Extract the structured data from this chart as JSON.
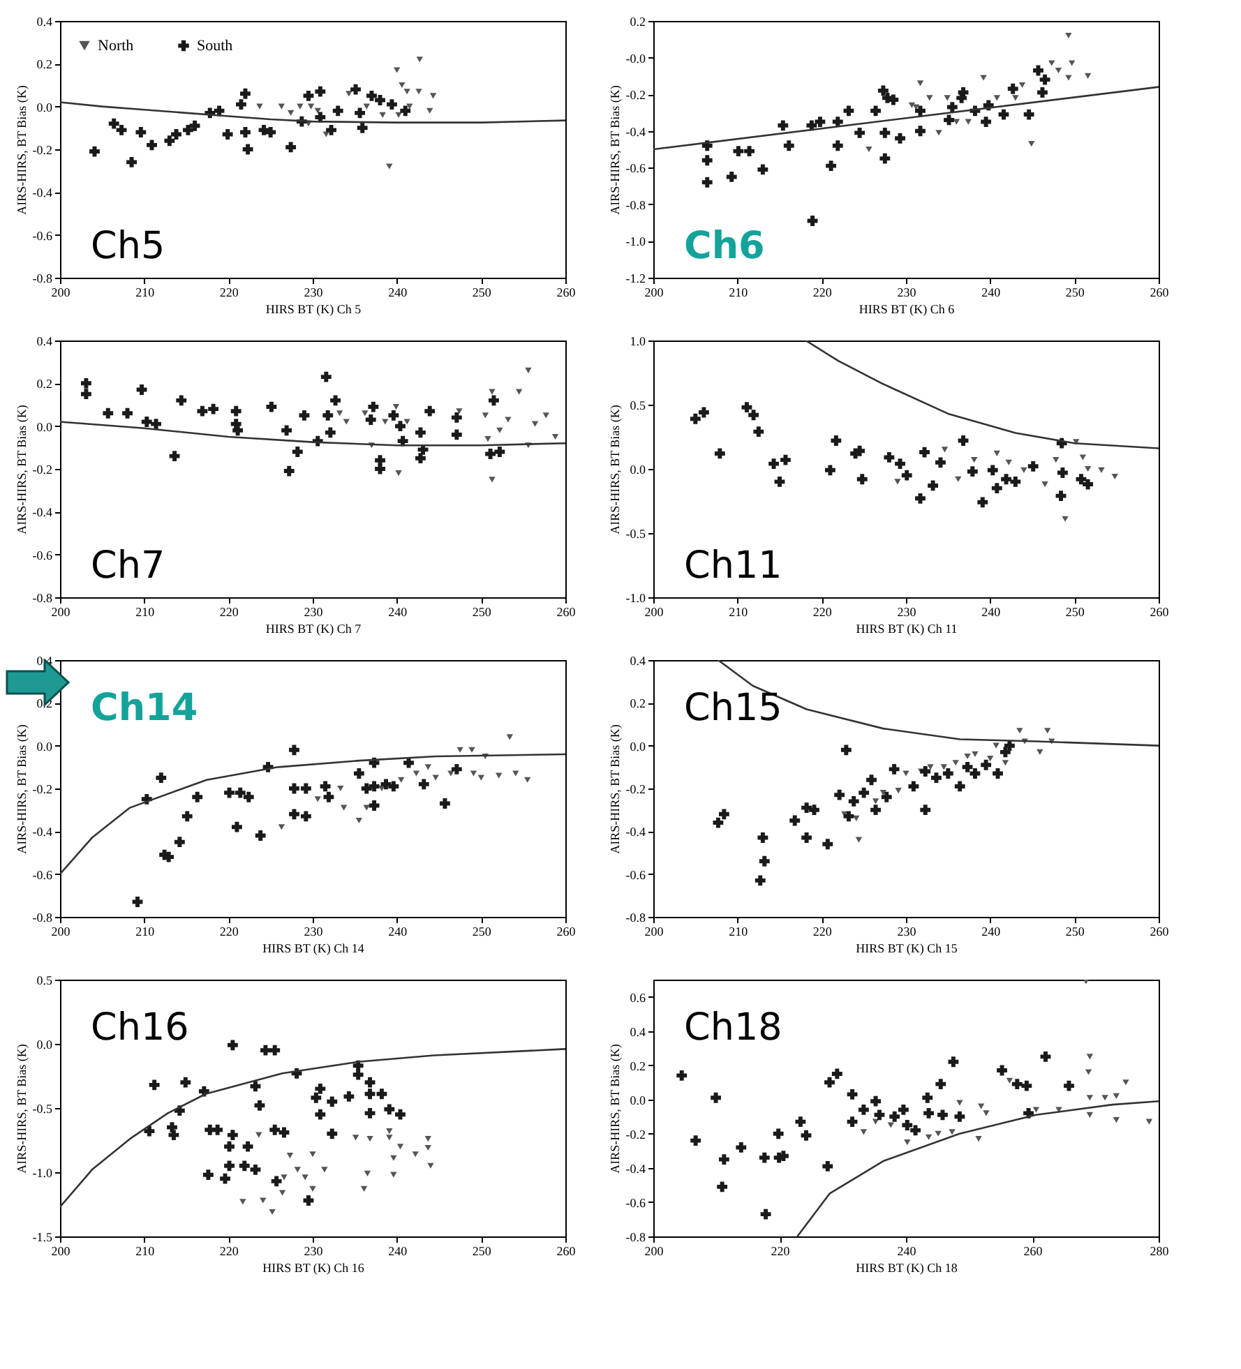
{
  "chart_data": [
    {
      "type": "scatter",
      "xlabel": "HIRS BT (K) Ch 5",
      "ylabel": "AIRS-HIRS, BT Bias (K)",
      "annotations": [
        "Ch5"
      ],
      "legend": "top left",
      "xlim": [
        200,
        260
      ],
      "xticks": [
        200,
        210,
        220,
        230,
        240,
        250,
        260
      ],
      "ylim": [
        -0.8,
        0.4
      ],
      "yticks": [
        -0.8,
        -0.6,
        -0.4,
        -0.2,
        {
          "value": 0,
          "label": "0.0"
        },
        0.2,
        0.4
      ],
      "series": [
        {
          "name": "North",
          "color": "#555555",
          "marker": "triangle",
          "x": [
            223.7,
            226.3,
            227.4,
            228.5,
            229.8,
            230.6,
            231.6,
            234.3,
            236.4,
            239.1,
            240,
            240.6,
            241.2,
            242.7,
            242.6,
            243.9,
            244.3,
            238.3,
            240.2,
            241.5,
            229.5
          ],
          "values": [
            0.0,
            0.0,
            -0.03,
            0.0,
            0.0,
            -0.02,
            -0.13,
            0.06,
            0.0,
            -0.28,
            0.17,
            0.1,
            0.07,
            0.22,
            0.07,
            -0.02,
            0.05,
            -0.04,
            -0.04,
            0.0,
            -0.08
          ]
        },
        {
          "name": "South",
          "color": "#1a1a1a",
          "marker": "cross",
          "x": [
            204.1,
            206.4,
            207.3,
            208.5,
            209.6,
            210.9,
            213,
            213.8,
            215.2,
            216,
            217.8,
            218.9,
            219.9,
            221.5,
            222,
            222,
            222.3,
            224.2,
            225,
            227.4,
            229.5,
            230.9,
            230.9,
            232.2,
            233,
            235.1,
            235.6,
            235.9,
            237,
            238,
            239.4,
            241,
            228.7
          ],
          "values": [
            -0.21,
            -0.08,
            -0.11,
            -0.26,
            -0.12,
            -0.18,
            -0.16,
            -0.13,
            -0.11,
            -0.09,
            -0.03,
            -0.02,
            -0.13,
            0.01,
            0.06,
            -0.12,
            -0.2,
            -0.11,
            -0.12,
            -0.19,
            0.05,
            0.07,
            -0.05,
            -0.11,
            -0.02,
            0.08,
            -0.03,
            -0.1,
            0.05,
            0.03,
            0.01,
            -0.02,
            -0.07
          ]
        },
        {
          "type": "line",
          "color": "#333333",
          "marker": "none",
          "x": [
            200,
            205,
            210,
            215,
            220,
            225,
            230,
            240,
            250,
            260
          ],
          "values": [
            0.02,
            0.0,
            -0.015,
            -0.03,
            -0.045,
            -0.06,
            -0.07,
            -0.075,
            -0.075,
            -0.065
          ]
        }
      ]
    },
    {
      "type": "scatter",
      "xlabel": "HIRS BT (K) Ch 6",
      "ylabel": "AIRS-HIRS, BT Bias (K)",
      "annotations": [
        "Ch6"
      ],
      "xlim": [
        200,
        260
      ],
      "xticks": [
        200,
        210,
        220,
        230,
        240,
        250,
        260
      ],
      "ylim": [
        -1.2,
        0.2
      ],
      "yticks": [
        -1.2,
        {
          "value": -1,
          "label": "-1.0"
        },
        -0.8,
        -0.6,
        -0.4,
        -0.2,
        {
          "value": 0,
          "label": "-0.0"
        },
        0.2
      ],
      "series": [
        {
          "color": "#555555",
          "marker": "triangle",
          "x": [
            231.7,
            231.2,
            232.8,
            233.9,
            234.9,
            236,
            239.2,
            240.8,
            243.8,
            244.9,
            247.3,
            248.1,
            249.3,
            249.7,
            249.3,
            251.6,
            225.6,
            230.7,
            237.4,
            243
          ],
          "values": [
            -0.14,
            -0.27,
            -0.22,
            -0.41,
            -0.22,
            -0.35,
            -0.11,
            -0.22,
            -0.15,
            -0.47,
            -0.03,
            -0.07,
            0.12,
            -0.03,
            -0.11,
            -0.1,
            -0.5,
            -0.26,
            -0.35,
            -0.22
          ]
        },
        {
          "color": "#1a1a1a",
          "marker": "cross",
          "x": [
            206.4,
            206.4,
            206.4,
            209.3,
            210.1,
            211.4,
            213,
            215.4,
            216.1,
            218.9,
            218.8,
            219.8,
            221.1,
            221.9,
            221.9,
            223.2,
            224.5,
            226.4,
            227.3,
            227.8,
            228.5,
            227.5,
            227.5,
            229.3,
            231.7,
            231.7,
            235.1,
            235.5,
            236.6,
            236.8,
            238.2,
            239.5,
            239.8,
            241.6,
            242.7,
            244.6,
            245.7,
            246.2,
            246.5
          ],
          "values": [
            -0.48,
            -0.56,
            -0.68,
            -0.65,
            -0.51,
            -0.51,
            -0.61,
            -0.37,
            -0.48,
            -0.89,
            -0.37,
            -0.35,
            -0.59,
            -0.35,
            -0.48,
            -0.29,
            -0.41,
            -0.29,
            -0.18,
            -0.22,
            -0.23,
            -0.41,
            -0.55,
            -0.44,
            -0.4,
            -0.29,
            -0.34,
            -0.27,
            -0.22,
            -0.19,
            -0.29,
            -0.35,
            -0.26,
            -0.31,
            -0.17,
            -0.31,
            -0.07,
            -0.19,
            -0.12
          ]
        },
        {
          "type": "line",
          "color": "#333333",
          "marker": "none",
          "x": [
            200,
            260
          ],
          "values": [
            -0.5,
            -0.16
          ]
        }
      ]
    },
    {
      "type": "scatter",
      "xlabel": "HIRS BT (K) Ch 7",
      "ylabel": "AIRS-HIRS, BT Bias (K)",
      "annotations": [
        "Ch7"
      ],
      "xlim": [
        200,
        260
      ],
      "xticks": [
        200,
        210,
        220,
        230,
        240,
        250,
        260
      ],
      "ylim": [
        -0.8,
        0.4
      ],
      "yticks": [
        -0.8,
        -0.6,
        -0.4,
        -0.2,
        {
          "value": 0,
          "label": "0.0"
        },
        0.2,
        0.4
      ],
      "series": [
        {
          "color": "#555555",
          "marker": "triangle",
          "x": [
            233.2,
            234,
            236.2,
            237,
            238.6,
            239.9,
            240.2,
            241.2,
            247.4,
            250.5,
            251.3,
            251.3,
            252.2,
            253.2,
            254.5,
            255.6,
            255.6,
            256.4,
            257.7,
            258.8,
            250.8
          ],
          "values": [
            0.06,
            0.02,
            0.06,
            -0.09,
            0.02,
            0.09,
            -0.22,
            0.02,
            0.07,
            0.05,
            0.16,
            -0.25,
            -0.02,
            0.03,
            0.16,
            0.26,
            -0.09,
            0.01,
            0.05,
            -0.05,
            -0.06
          ]
        },
        {
          "color": "#1a1a1a",
          "marker": "cross",
          "x": [
            203.1,
            203.1,
            205.7,
            208,
            209.7,
            210.3,
            211.4,
            213.6,
            214.4,
            216.9,
            218.2,
            220.9,
            220.9,
            221.1,
            225.1,
            226.9,
            227.2,
            228.2,
            229,
            230.6,
            231.6,
            231.8,
            232.1,
            232.7,
            237.2,
            236.9,
            238,
            238,
            239.6,
            240.4,
            240.7,
            242.8,
            243.1,
            242.8,
            243.9,
            247.1,
            247.1,
            251.5,
            251.1,
            252.2
          ],
          "values": [
            0.2,
            0.15,
            0.06,
            0.06,
            0.17,
            0.02,
            0.01,
            -0.14,
            0.12,
            0.07,
            0.08,
            0.07,
            0.01,
            -0.02,
            0.09,
            -0.02,
            -0.21,
            -0.12,
            0.05,
            -0.07,
            0.23,
            0.05,
            -0.03,
            0.12,
            0.09,
            0.03,
            -0.16,
            -0.2,
            0.05,
            0.0,
            -0.07,
            -0.03,
            -0.11,
            -0.15,
            0.07,
            0.04,
            -0.04,
            0.12,
            -0.13,
            -0.12
          ]
        },
        {
          "type": "line",
          "color": "#333333",
          "marker": "none",
          "x": [
            200,
            210,
            220,
            230,
            240,
            250,
            260
          ],
          "values": [
            0.02,
            -0.01,
            -0.05,
            -0.075,
            -0.09,
            -0.09,
            -0.08
          ]
        }
      ]
    },
    {
      "type": "scatter",
      "xlabel": "HIRS BT (K) Ch 11",
      "ylabel": "AIRS-HIRS, BT Bias (K)",
      "annotations": [
        "Ch11"
      ],
      "xlim": [
        200,
        260
      ],
      "xticks": [
        200,
        210,
        220,
        230,
        240,
        250,
        260
      ],
      "ylim": [
        -1,
        1
      ],
      "yticks": [
        {
          "value": -1,
          "label": "-1.0"
        },
        -0.5,
        {
          "value": 0,
          "label": "0.0"
        },
        0.5,
        {
          "value": 1,
          "label": "1.0"
        }
      ],
      "series": [
        {
          "color": "#555555",
          "marker": "triangle",
          "x": [
            229,
            234.6,
            236.2,
            238.1,
            240.8,
            242.2,
            246.5,
            247.8,
            248.9,
            250.2,
            251,
            253.2,
            254.8,
            251.6,
            244
          ],
          "values": [
            -0.1,
            0.15,
            -0.08,
            0.07,
            0.12,
            0.05,
            -0.12,
            0.07,
            -0.39,
            0.21,
            0.09,
            -0.01,
            -0.06,
            0.0,
            -0.01
          ]
        },
        {
          "color": "#1a1a1a",
          "marker": "cross",
          "x": [
            205,
            206,
            207.9,
            211.1,
            211.9,
            212.5,
            214.3,
            215,
            215.7,
            221,
            221.7,
            224,
            224.5,
            224.8,
            228,
            229.3,
            230.1,
            231.7,
            232.2,
            233.2,
            234.1,
            236.8,
            237.9,
            239.1,
            240.3,
            240.8,
            241.9,
            243,
            245.1,
            248.5,
            248.6,
            248.4,
            251.6,
            250.8
          ],
          "values": [
            0.39,
            0.44,
            0.12,
            0.48,
            0.42,
            0.29,
            0.04,
            -0.1,
            0.07,
            -0.01,
            0.22,
            0.12,
            0.14,
            -0.08,
            0.09,
            0.04,
            -0.05,
            -0.23,
            0.13,
            -0.13,
            0.05,
            0.22,
            -0.02,
            -0.26,
            -0.01,
            -0.15,
            -0.08,
            -0.1,
            0.02,
            0.2,
            -0.03,
            -0.21,
            -0.12,
            -0.08
          ]
        },
        {
          "type": "line",
          "color": "#333333",
          "marker": "none",
          "x": [
            218.1,
            222,
            227,
            235,
            243,
            250,
            260
          ],
          "values": [
            1.0,
            0.84,
            0.67,
            0.43,
            0.28,
            0.2,
            0.16
          ]
        }
      ]
    },
    {
      "type": "scatter",
      "xlabel": "HIRS BT (K) Ch 14",
      "ylabel": "AIRS-HIRS, BT Bias (K)",
      "annotations": [
        "Ch14"
      ],
      "xlim": [
        200,
        260
      ],
      "xticks": [
        200,
        210,
        220,
        230,
        240,
        250,
        260
      ],
      "ylim": [
        -0.8,
        0.4
      ],
      "yticks": [
        -0.8,
        -0.6,
        -0.4,
        -0.2,
        {
          "value": 0,
          "label": "0.0"
        },
        0.2,
        0.4
      ],
      "series": [
        {
          "color": "#555555",
          "marker": "triangle",
          "x": [
            226.3,
            230.6,
            233.7,
            235.5,
            233.3,
            238.2,
            242.3,
            244.6,
            247.5,
            248.9,
            249.1,
            250.5,
            250,
            252.1,
            253.4,
            254.1,
            255.5,
            246.4,
            236.4,
            240.5,
            243.7
          ],
          "values": [
            -0.38,
            -0.25,
            -0.29,
            -0.35,
            -0.2,
            -0.2,
            -0.13,
            -0.15,
            -0.02,
            -0.02,
            -0.13,
            -0.05,
            -0.15,
            -0.14,
            0.04,
            -0.13,
            -0.16,
            -0.13,
            -0.29,
            -0.16,
            -0.1
          ]
        },
        {
          "color": "#1a1a1a",
          "marker": "cross",
          "x": [
            209.2,
            210.3,
            212,
            212.4,
            212.9,
            214.2,
            215.1,
            216.3,
            220.1,
            221.4,
            221,
            222.4,
            223.8,
            224.7,
            227.8,
            227.8,
            227.8,
            229.2,
            231.5,
            231.9,
            235.5,
            236.4,
            237.3,
            237.3,
            238.7,
            239.6,
            241.4,
            243.2,
            245.7,
            247.1,
            237.3,
            229.2
          ],
          "values": [
            -0.73,
            -0.25,
            -0.15,
            -0.51,
            -0.52,
            -0.45,
            -0.33,
            -0.24,
            -0.22,
            -0.22,
            -0.38,
            -0.24,
            -0.42,
            -0.1,
            -0.02,
            -0.2,
            -0.32,
            -0.33,
            -0.19,
            -0.24,
            -0.13,
            -0.2,
            -0.08,
            -0.28,
            -0.18,
            -0.19,
            -0.08,
            -0.18,
            -0.27,
            -0.11,
            -0.19,
            -0.2
          ]
        },
        {
          "type": "line",
          "color": "#333333",
          "marker": "none",
          "x": [
            200,
            203.8,
            208.3,
            217.4,
            225.9,
            235.5,
            244.6,
            260
          ],
          "values": [
            -0.6,
            -0.43,
            -0.29,
            -0.16,
            -0.1,
            -0.07,
            -0.05,
            -0.04
          ]
        }
      ]
    },
    {
      "type": "scatter",
      "xlabel": "HIRS BT (K) Ch 15",
      "ylabel": "AIRS-HIRS, BT Bias (K)",
      "annotations": [
        "Ch15"
      ],
      "xlim": [
        200,
        260
      ],
      "xticks": [
        200,
        210,
        220,
        230,
        240,
        250,
        260
      ],
      "ylim": [
        -0.8,
        0.4
      ],
      "yticks": [
        -0.8,
        -0.6,
        -0.4,
        -0.2,
        {
          "value": 0,
          "label": "0.0"
        },
        0.2,
        0.4
      ],
      "series": [
        {
          "color": "#555555",
          "marker": "triangle",
          "x": [
            224.1,
            224.4,
            227.3,
            230,
            232.9,
            235.9,
            238.2,
            240,
            240.7,
            243.5,
            244.1,
            245.9,
            246.8,
            247.3,
            231.8,
            234.5,
            237.3,
            241.8,
            226.4,
            229.1,
            222.7
          ],
          "values": [
            -0.34,
            -0.44,
            -0.22,
            -0.13,
            -0.1,
            -0.08,
            -0.04,
            -0.06,
            0.0,
            0.07,
            0.02,
            -0.03,
            0.07,
            0.02,
            -0.12,
            -0.1,
            -0.05,
            -0.08,
            -0.26,
            -0.21,
            -0.32
          ]
        },
        {
          "color": "#1a1a1a",
          "marker": "cross",
          "x": [
            207.7,
            208.4,
            213,
            213.2,
            212.7,
            216.8,
            218.2,
            219.1,
            218.2,
            220.7,
            222.1,
            222.9,
            223.2,
            223.8,
            225,
            225.9,
            226.4,
            227.7,
            228.6,
            230.9,
            232.3,
            232.3,
            233.6,
            235,
            236.4,
            237.3,
            238.2,
            239.5,
            240.9,
            241.8,
            242.3
          ],
          "values": [
            -0.36,
            -0.32,
            -0.43,
            -0.54,
            -0.63,
            -0.35,
            -0.29,
            -0.3,
            -0.43,
            -0.46,
            -0.23,
            -0.02,
            -0.33,
            -0.26,
            -0.22,
            -0.16,
            -0.3,
            -0.24,
            -0.11,
            -0.19,
            -0.3,
            -0.12,
            -0.15,
            -0.13,
            -0.19,
            -0.1,
            -0.13,
            -0.09,
            -0.13,
            -0.03,
            0.0
          ]
        },
        {
          "type": "line",
          "color": "#333333",
          "marker": "none",
          "x": [
            207.7,
            211.8,
            218.2,
            227.3,
            236.4,
            245.5,
            260
          ],
          "values": [
            0.4,
            0.28,
            0.17,
            0.08,
            0.03,
            0.02,
            0.0
          ]
        }
      ]
    },
    {
      "type": "scatter",
      "xlabel": "HIRS BT (K) Ch 16",
      "ylabel": "AIRS-HIRS, BT Bias (K)",
      "annotations": [
        "Ch16"
      ],
      "xlim": [
        200,
        260
      ],
      "xticks": [
        200,
        210,
        220,
        230,
        240,
        250,
        260
      ],
      "ylim": [
        -1.5,
        0.5
      ],
      "yticks": [
        -1.5,
        {
          "value": -1,
          "label": "-1.0"
        },
        -0.5,
        {
          "value": 0,
          "label": "0.0"
        },
        0.5
      ],
      "series": [
        {
          "color": "#555555",
          "marker": "triangle",
          "x": [
            221.7,
            224.1,
            225.2,
            223.6,
            227.3,
            226.6,
            228.2,
            229.1,
            230,
            226.4,
            230,
            235.1,
            236.8,
            236.5,
            236.1,
            239.1,
            239.6,
            239.6,
            240.4,
            242.2,
            243.7,
            243.7,
            244,
            231.4,
            239.1
          ],
          "values": [
            -1.23,
            -1.22,
            -1.31,
            -0.71,
            -0.87,
            -1.04,
            -0.98,
            -1.04,
            -1.13,
            -1.16,
            -0.86,
            -0.73,
            -0.74,
            -1.01,
            -1.13,
            -0.68,
            -0.89,
            -1.02,
            -0.8,
            -0.86,
            -0.74,
            -0.81,
            -0.95,
            -0.98,
            -0.73
          ]
        },
        {
          "color": "#1a1a1a",
          "marker": "cross",
          "x": [
            210.6,
            211.2,
            213.3,
            213.5,
            214.2,
            214.9,
            217.1,
            217.6,
            217.8,
            218.7,
            219.6,
            220.5,
            220.1,
            220.5,
            220.1,
            221.9,
            222.3,
            223.2,
            223.7,
            223.2,
            224.4,
            225.5,
            225.5,
            225.7,
            226.6,
            228.1,
            229.5,
            230.4,
            230.9,
            230.9,
            232.3,
            232.3,
            234.3,
            235.4,
            235.4,
            236.8,
            236.8,
            236.8,
            238.2,
            239.1,
            240.4
          ],
          "values": [
            -0.68,
            -0.32,
            -0.65,
            -0.71,
            -0.52,
            -0.3,
            -0.37,
            -1.02,
            -0.67,
            -0.67,
            -1.05,
            -0.01,
            -0.8,
            -0.71,
            -0.95,
            -0.95,
            -0.8,
            -0.33,
            -0.48,
            -0.98,
            -0.05,
            -0.05,
            -0.67,
            -1.07,
            -0.69,
            -0.23,
            -1.22,
            -0.42,
            -0.35,
            -0.55,
            -0.7,
            -0.45,
            -0.41,
            -0.17,
            -0.24,
            -0.3,
            -0.39,
            -0.54,
            -0.39,
            -0.51,
            -0.55
          ]
        },
        {
          "type": "line",
          "color": "#333333",
          "marker": "none",
          "x": [
            200,
            203.8,
            208.3,
            212.8,
            217.3,
            226.4,
            235.4,
            244.4,
            260
          ],
          "values": [
            -1.27,
            -0.98,
            -0.74,
            -0.54,
            -0.39,
            -0.23,
            -0.14,
            -0.09,
            -0.04
          ]
        }
      ]
    },
    {
      "type": "scatter",
      "xlabel": "HIRS BT (K) Ch 18",
      "ylabel": "AIRS-HIRS, BT Bias (K)",
      "annotations": [
        "Ch18"
      ],
      "xlim": [
        200,
        280
      ],
      "xticks": [
        200,
        220,
        240,
        260,
        280
      ],
      "ylim": [
        -0.8,
        0.7
      ],
      "yticks": [
        -0.8,
        -0.6,
        -0.4,
        -0.2,
        {
          "value": 0,
          "label": "0.0"
        },
        0.2,
        0.4,
        0.6
      ],
      "series": [
        {
          "color": "#555555",
          "marker": "triangle",
          "x": [
            233.3,
            237.6,
            240.2,
            243.6,
            245.1,
            247.3,
            251.5,
            251.9,
            248.5,
            256.4,
            264.2,
            269.1,
            268.9,
            269.1,
            269.1,
            271.5,
            273.3,
            274.8,
            273.3,
            278.5,
            268.5,
            252.7,
            235.2,
            260.6
          ],
          "values": [
            -0.19,
            -0.15,
            -0.25,
            -0.22,
            -0.2,
            -0.19,
            -0.23,
            -0.04,
            -0.02,
            0.11,
            -0.06,
            0.25,
            0.16,
            0.01,
            -0.09,
            0.01,
            0.02,
            0.1,
            -0.12,
            -0.13,
            0.69,
            -0.08,
            -0.13,
            -0.06
          ]
        },
        {
          "color": "#1a1a1a",
          "marker": "cross",
          "x": [
            204.5,
            206.7,
            209.9,
            211.2,
            210.9,
            213.9,
            217.6,
            217.8,
            219.8,
            219.9,
            220.6,
            223.3,
            224.2,
            227.6,
            227.9,
            229.1,
            231.5,
            231.5,
            233.3,
            235.2,
            235.8,
            238.2,
            239.6,
            240.2,
            241.5,
            243.4,
            245.5,
            245.8,
            247.5,
            248.5,
            255.2,
            257.6,
            259.1,
            259.4,
            262.1,
            265.8,
            243.6
          ],
          "values": [
            0.14,
            -0.24,
            0.01,
            -0.35,
            -0.51,
            -0.28,
            -0.34,
            -0.67,
            -0.2,
            -0.34,
            -0.33,
            -0.13,
            -0.21,
            -0.39,
            0.1,
            0.15,
            0.03,
            -0.13,
            -0.06,
            -0.01,
            -0.09,
            -0.1,
            -0.06,
            -0.15,
            -0.18,
            0.01,
            0.09,
            -0.09,
            0.22,
            -0.1,
            0.17,
            0.09,
            0.08,
            -0.08,
            0.25,
            0.08,
            -0.08
          ]
        },
        {
          "type": "line",
          "color": "#333333",
          "marker": "none",
          "x": [
            222.8,
            227.9,
            236.4,
            248.5,
            260.6,
            272.7,
            280
          ],
          "values": [
            -0.8,
            -0.55,
            -0.36,
            -0.2,
            -0.09,
            -0.03,
            -0.01
          ]
        }
      ]
    }
  ]
}
